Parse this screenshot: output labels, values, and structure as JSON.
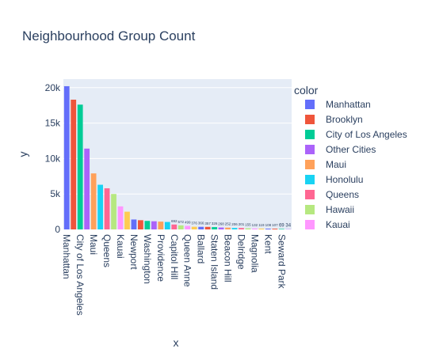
{
  "chart_data": {
    "type": "bar",
    "title": "Neighbourhood Group Count",
    "xlabel": "x",
    "ylabel": "y",
    "ylim": [
      0,
      21200
    ],
    "yticks": [
      0,
      5000,
      10000,
      15000,
      20000
    ],
    "ytick_labels": [
      "0",
      "5k",
      "10k",
      "15k",
      "20k"
    ],
    "grid": true,
    "legend_title": "color",
    "legend_position": "right",
    "shown_tick_labels": [
      "Manhattan",
      "City of Los Angeles",
      "Maui",
      "Queens",
      "Kauai",
      "Newport",
      "Washington",
      "Providence",
      "Capitol Hill",
      "Queen Anne",
      "Ballard",
      "Staten Island",
      "Beacon Hill",
      "Delridge",
      "Magnolia",
      "Kent",
      "Seward Park"
    ],
    "series": [
      {
        "name": "Manhattan",
        "color": "#636efa",
        "value": 20200,
        "label": ""
      },
      {
        "name": "Brooklyn",
        "color": "#EF553B",
        "value": 18300,
        "label": ""
      },
      {
        "name": "City of Los Angeles",
        "color": "#00cc96",
        "value": 17600,
        "label": ""
      },
      {
        "name": "Other Cities",
        "color": "#ab63fa",
        "value": 11400,
        "label": ""
      },
      {
        "name": "Maui",
        "color": "#FFA15A",
        "value": 7900,
        "label": ""
      },
      {
        "name": "Honolulu",
        "color": "#19d3f3",
        "value": 6300,
        "label": ""
      },
      {
        "name": "Queens",
        "color": "#FF6692",
        "value": 5800,
        "label": ""
      },
      {
        "name": "Hawaii",
        "color": "#B6E880",
        "value": 5000,
        "label": ""
      },
      {
        "name": "Kauai",
        "color": "#FF97FF",
        "value": 3250,
        "label": ""
      },
      {
        "name": "",
        "color": "#FECB52",
        "value": 2500,
        "label": ""
      },
      {
        "name": "Newport",
        "color": "#636efa",
        "value": 1400,
        "label": ""
      },
      {
        "name": "",
        "color": "#EF553B",
        "value": 1300,
        "label": ""
      },
      {
        "name": "Washington",
        "color": "#00cc96",
        "value": 1200,
        "label": ""
      },
      {
        "name": "",
        "color": "#ab63fa",
        "value": 1150,
        "label": ""
      },
      {
        "name": "Providence",
        "color": "#FFA15A",
        "value": 1100,
        "label": ""
      },
      {
        "name": "",
        "color": "#19d3f3",
        "value": 1050,
        "label": ""
      },
      {
        "name": "Capitol Hill",
        "color": "#FF6692",
        "value": 692,
        "label": "692"
      },
      {
        "name": "",
        "color": "#B6E880",
        "value": 572,
        "label": "572"
      },
      {
        "name": "Queen Anne",
        "color": "#FF97FF",
        "value": 499,
        "label": "499"
      },
      {
        "name": "",
        "color": "#FECB52",
        "value": 376,
        "label": "376"
      },
      {
        "name": "Ballard",
        "color": "#636efa",
        "value": 366,
        "label": "366"
      },
      {
        "name": "",
        "color": "#EF553B",
        "value": 357,
        "label": "357"
      },
      {
        "name": "Staten Island",
        "color": "#00cc96",
        "value": 326,
        "label": "326"
      },
      {
        "name": "",
        "color": "#ab63fa",
        "value": 268,
        "label": "268"
      },
      {
        "name": "Beacon Hill",
        "color": "#FFA15A",
        "value": 252,
        "label": "252"
      },
      {
        "name": "",
        "color": "#19d3f3",
        "value": 206,
        "label": "206"
      },
      {
        "name": "Delridge",
        "color": "#FF6692",
        "value": 201,
        "label": "201"
      },
      {
        "name": "",
        "color": "#B6E880",
        "value": 155,
        "label": "155"
      },
      {
        "name": "Magnolia",
        "color": "#FF97FF",
        "value": 132,
        "label": "132"
      },
      {
        "name": "",
        "color": "#FECB52",
        "value": 119,
        "label": "119"
      },
      {
        "name": "Kent",
        "color": "#636efa",
        "value": 108,
        "label": "108"
      },
      {
        "name": "",
        "color": "#EF553B",
        "value": 107,
        "label": "107"
      },
      {
        "name": "Seward Park",
        "color": "#00cc96",
        "value": 69,
        "label": "69"
      },
      {
        "name": "",
        "color": "#ab63fa",
        "value": 34,
        "label": "34"
      }
    ],
    "legend_entries": [
      "Manhattan",
      "Brooklyn",
      "City of Los Angeles",
      "Other Cities",
      "Maui",
      "Honolulu",
      "Queens",
      "Hawaii",
      "Kauai"
    ]
  }
}
